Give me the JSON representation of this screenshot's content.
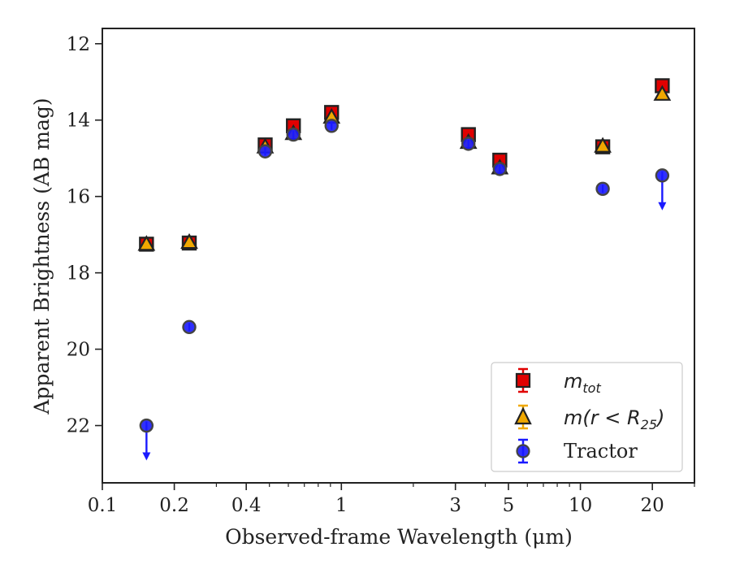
{
  "chart_data": {
    "type": "scatter",
    "xlabel": "Observed-frame Wavelength (μm)",
    "ylabel": "Apparent Brightness (AB mag)",
    "xscale": "log",
    "xlim": [
      0.1,
      30
    ],
    "ylim": [
      23.5,
      11.6
    ],
    "y_inverted": true,
    "x_ticks": [
      0.1,
      0.2,
      0.4,
      1,
      3,
      5,
      10,
      20
    ],
    "x_tick_labels": [
      "0.1",
      "0.2",
      "0.4",
      "1",
      "3",
      "5",
      "10",
      "20"
    ],
    "y_ticks": [
      12,
      14,
      16,
      18,
      20,
      22
    ],
    "y_tick_labels": [
      "12",
      "14",
      "16",
      "18",
      "20",
      "22"
    ],
    "grid": false,
    "legend_position": "lower-right",
    "series": [
      {
        "name": "m_tot",
        "marker": "square",
        "color": "#e00000",
        "x": [
          0.153,
          0.231,
          0.48,
          0.63,
          0.91,
          3.4,
          4.6,
          12.4,
          22.0
        ],
        "y": [
          17.25,
          17.22,
          14.65,
          14.15,
          13.8,
          14.38,
          15.05,
          14.7,
          13.1
        ]
      },
      {
        "name": "m(r < R25)",
        "marker": "triangle",
        "color": "#f0a800",
        "x": [
          0.153,
          0.231,
          0.48,
          0.63,
          0.91,
          3.4,
          4.6,
          12.4,
          22.0
        ],
        "y": [
          17.25,
          17.2,
          14.7,
          14.35,
          13.92,
          14.58,
          15.25,
          14.68,
          13.32
        ]
      },
      {
        "name": "Tractor",
        "marker": "circle",
        "color": "#1a1aff",
        "x": [
          0.153,
          0.231,
          0.48,
          0.63,
          0.91,
          3.4,
          4.6,
          12.4,
          22.0
        ],
        "y": [
          22.0,
          19.42,
          14.82,
          14.38,
          14.15,
          14.62,
          15.28,
          15.8,
          15.45
        ],
        "upper_limit": [
          true,
          false,
          false,
          false,
          false,
          false,
          false,
          false,
          true
        ]
      }
    ]
  },
  "legend": {
    "mtot_main": "m",
    "mtot_sub": "tot",
    "mr_prefix": "m(r < R",
    "mr_sub": "25",
    "mr_suffix": ")",
    "tractor": "Tractor"
  },
  "colors": {
    "red": "#e00000",
    "orange": "#f0a800",
    "blue": "#1a1aff",
    "edge": "#222222"
  }
}
